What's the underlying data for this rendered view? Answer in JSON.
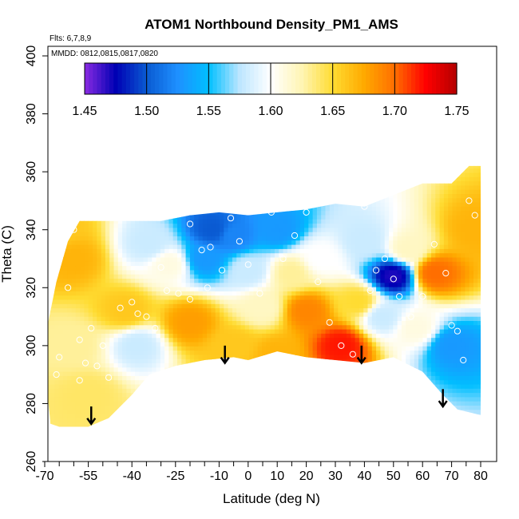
{
  "chart_data": {
    "type": "heatmap",
    "title": "ATOM1 Northbound Density_PM1_AMS",
    "annotations": [
      "Flts: 6,7,8,9",
      "MMDD: 0812,0815,0817,0820"
    ],
    "xlabel": "Latitude (deg N)",
    "ylabel": "Theta (C)",
    "xlim": [
      -70,
      80
    ],
    "ylim": [
      260,
      400
    ],
    "x_tick_labels": [
      "-70",
      "-55",
      "-40",
      "-25",
      "-10",
      "0",
      "10",
      "20",
      "30",
      "40",
      "50",
      "60",
      "70",
      "80"
    ],
    "x_tick_values": [
      -70,
      -55,
      -40,
      -25,
      -10,
      0,
      10,
      20,
      30,
      40,
      50,
      60,
      70,
      80
    ],
    "x_minor_ticks": [
      -65,
      -60,
      -50,
      -45,
      -35,
      -30,
      -20,
      -15,
      -5,
      5,
      15,
      25,
      35,
      45,
      55,
      65,
      75
    ],
    "y_tick_labels": [
      "260",
      "280",
      "300",
      "320",
      "340",
      "360",
      "380",
      "400"
    ],
    "y_tick_values": [
      260,
      280,
      300,
      320,
      340,
      360,
      380,
      400
    ],
    "colorbar": {
      "min": 1.45,
      "max": 1.75,
      "tick_labels": [
        "1.45",
        "1.50",
        "1.55",
        "1.60",
        "1.65",
        "1.70",
        "1.75"
      ],
      "tick_values": [
        1.45,
        1.5,
        1.55,
        1.6,
        1.65,
        1.7,
        1.75
      ],
      "colors": [
        "#8a2be2",
        "#0000b4",
        "#0a5ad2",
        "#1e90ff",
        "#00bfff",
        "#bde6ff",
        "#ffffff",
        "#fff5b4",
        "#ffdc32",
        "#ffaa00",
        "#ff6e00",
        "#ff0000",
        "#b40000"
      ]
    },
    "arrows_at_latitude": [
      {
        "x": -54,
        "y_top": 279,
        "y_tip": 273
      },
      {
        "x": -8,
        "y_top": 300,
        "y_tip": 294
      },
      {
        "x": 39,
        "y_top": 300,
        "y_tip": 294
      },
      {
        "x": 67,
        "y_top": 285,
        "y_tip": 279
      }
    ],
    "surface_outline": [
      [
        -68,
        273
      ],
      [
        -65,
        272
      ],
      [
        -55,
        272
      ],
      [
        -48,
        275
      ],
      [
        -40,
        283
      ],
      [
        -34,
        290
      ],
      [
        -25,
        293
      ],
      [
        -15,
        295
      ],
      [
        -5,
        296
      ],
      [
        0,
        295
      ],
      [
        10,
        298
      ],
      [
        20,
        296
      ],
      [
        30,
        295
      ],
      [
        40,
        294
      ],
      [
        50,
        296
      ],
      [
        60,
        291
      ],
      [
        67,
        283
      ],
      [
        72,
        278
      ],
      [
        80,
        276
      ],
      [
        80,
        362
      ],
      [
        76,
        362
      ],
      [
        70,
        356
      ],
      [
        60,
        356
      ],
      [
        50,
        352
      ],
      [
        40,
        348
      ],
      [
        30,
        349
      ],
      [
        20,
        347
      ],
      [
        10,
        346
      ],
      [
        0,
        345
      ],
      [
        -10,
        346
      ],
      [
        -20,
        345
      ],
      [
        -30,
        343
      ],
      [
        -40,
        343
      ],
      [
        -50,
        343
      ],
      [
        -58,
        343
      ],
      [
        -62,
        336
      ],
      [
        -66,
        322
      ],
      [
        -69,
        307
      ],
      [
        -70,
        296
      ],
      [
        -69,
        283
      ],
      [
        -68,
        273
      ]
    ],
    "density_anchors": [
      {
        "x": -60,
        "y": 330,
        "v": 1.67
      },
      {
        "x": -60,
        "y": 300,
        "v": 1.63
      },
      {
        "x": -55,
        "y": 283,
        "v": 1.64
      },
      {
        "x": -42,
        "y": 312,
        "v": 1.66
      },
      {
        "x": -38,
        "y": 300,
        "v": 1.58
      },
      {
        "x": -34,
        "y": 335,
        "v": 1.58
      },
      {
        "x": -27,
        "y": 328,
        "v": 1.61
      },
      {
        "x": -20,
        "y": 308,
        "v": 1.68
      },
      {
        "x": -12,
        "y": 340,
        "v": 1.5
      },
      {
        "x": -15,
        "y": 330,
        "v": 1.53
      },
      {
        "x": -5,
        "y": 338,
        "v": 1.52
      },
      {
        "x": 0,
        "y": 326,
        "v": 1.58
      },
      {
        "x": 5,
        "y": 313,
        "v": 1.62
      },
      {
        "x": 10,
        "y": 340,
        "v": 1.53
      },
      {
        "x": 15,
        "y": 325,
        "v": 1.63
      },
      {
        "x": 25,
        "y": 330,
        "v": 1.6
      },
      {
        "x": 20,
        "y": 312,
        "v": 1.69
      },
      {
        "x": 32,
        "y": 300,
        "v": 1.72
      },
      {
        "x": 38,
        "y": 315,
        "v": 1.65
      },
      {
        "x": 40,
        "y": 336,
        "v": 1.58
      },
      {
        "x": 46,
        "y": 310,
        "v": 1.58
      },
      {
        "x": 50,
        "y": 324,
        "v": 1.47
      },
      {
        "x": 55,
        "y": 333,
        "v": 1.62
      },
      {
        "x": 58,
        "y": 306,
        "v": 1.61
      },
      {
        "x": 64,
        "y": 325,
        "v": 1.7
      },
      {
        "x": 70,
        "y": 300,
        "v": 1.53
      },
      {
        "x": 78,
        "y": 340,
        "v": 1.67
      },
      {
        "x": 10,
        "y": 297,
        "v": 1.67
      },
      {
        "x": -5,
        "y": 300,
        "v": 1.66
      },
      {
        "x": -65,
        "y": 340,
        "v": 1.66
      }
    ],
    "observation_points": [
      [
        -66,
        290
      ],
      [
        -65,
        296
      ],
      [
        -62,
        320
      ],
      [
        -58,
        302
      ],
      [
        -56,
        294
      ],
      [
        -54,
        306
      ],
      [
        -52,
        293
      ],
      [
        -50,
        300
      ],
      [
        -48,
        289
      ],
      [
        -44,
        313
      ],
      [
        -40,
        315
      ],
      [
        -38,
        311
      ],
      [
        -35,
        310
      ],
      [
        -32,
        306
      ],
      [
        -28,
        319
      ],
      [
        -24,
        318
      ],
      [
        -20,
        316
      ],
      [
        -14,
        320
      ],
      [
        -10,
        294
      ],
      [
        -9,
        326
      ],
      [
        -6,
        344
      ],
      [
        -3,
        336
      ],
      [
        0,
        328
      ],
      [
        4,
        318
      ],
      [
        8,
        346
      ],
      [
        12,
        330
      ],
      [
        16,
        338
      ],
      [
        20,
        346
      ],
      [
        24,
        322
      ],
      [
        28,
        308
      ],
      [
        32,
        300
      ],
      [
        36,
        297
      ],
      [
        40,
        348
      ],
      [
        42,
        319
      ],
      [
        44,
        326
      ],
      [
        47,
        330
      ],
      [
        50,
        323
      ],
      [
        52,
        317
      ],
      [
        56,
        310
      ],
      [
        60,
        317
      ],
      [
        64,
        335
      ],
      [
        68,
        325
      ],
      [
        70,
        307
      ],
      [
        72,
        305
      ],
      [
        74,
        295
      ],
      [
        76,
        350
      ],
      [
        78,
        345
      ],
      [
        -20,
        342
      ],
      [
        -16,
        333
      ],
      [
        -13,
        334
      ],
      [
        -30,
        327
      ],
      [
        -58,
        288
      ],
      [
        -60,
        340
      ]
    ]
  }
}
